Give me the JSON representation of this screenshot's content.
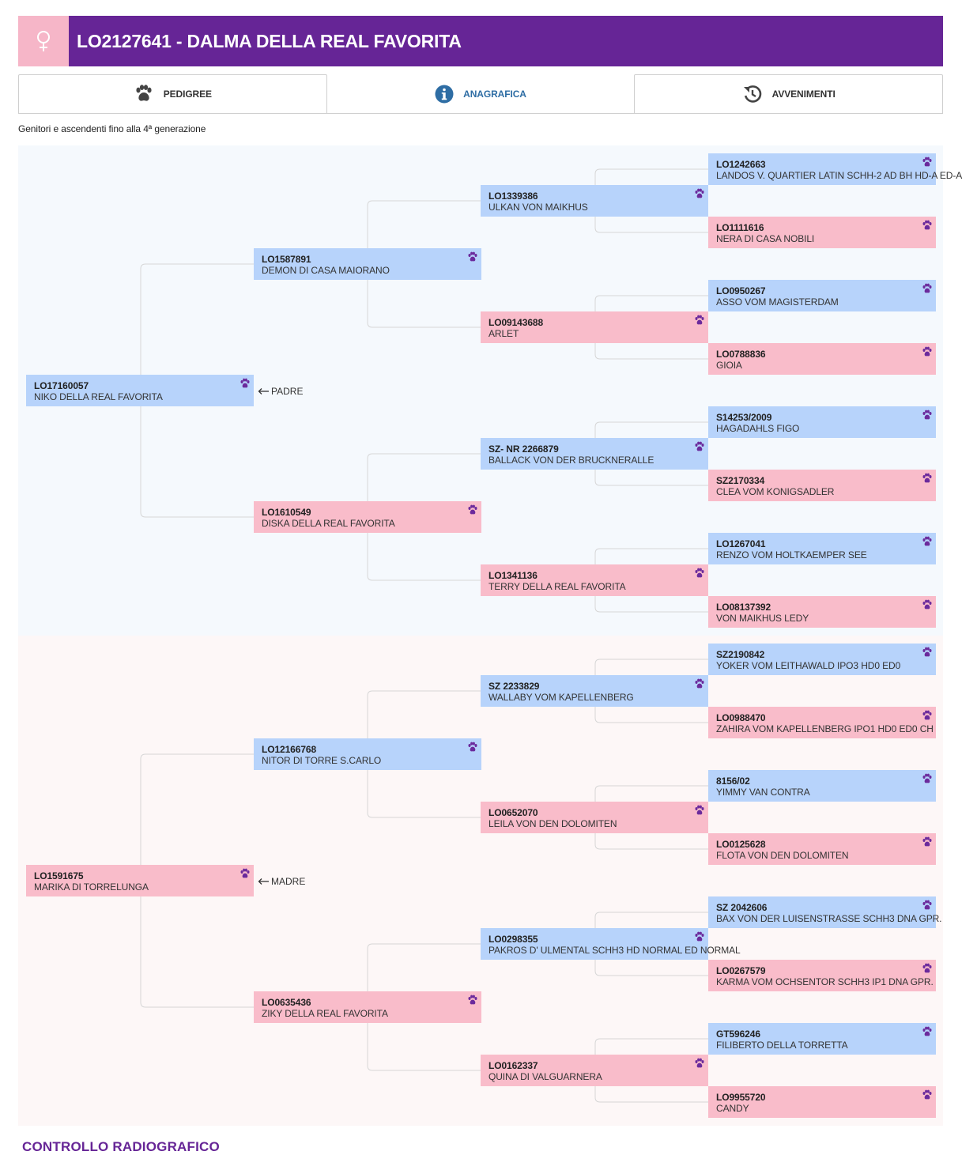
{
  "header": {
    "title": "LO2127641 - DALMA DELLA REAL FAVORITA",
    "sex_icon": "female-symbol-icon",
    "colors": {
      "bar": "#662596",
      "sex_box": "#f6b6c8"
    }
  },
  "tabs": [
    {
      "label": "PEDIGREE",
      "icon": "paw-icon"
    },
    {
      "label": "ANAGRAFICA",
      "icon": "info-circle-icon"
    },
    {
      "label": "AVVENIMENTI",
      "icon": "history-icon"
    }
  ],
  "subtitle": "Genitori e ascendenti fino alla 4ª generazione",
  "roles": {
    "sire": "PADRE",
    "dam": "MADRE"
  },
  "colors": {
    "male": "#b7d3fb",
    "female": "#f9bcca",
    "paw": "#6b2a9c"
  },
  "pedigree": {
    "sire": {
      "reg": "LO17160057",
      "name": "NIKO DELLA REAL FAVORITA",
      "sex": "m"
    },
    "ss": {
      "reg": "LO1587891",
      "name": "DEMON DI CASA MAIORANO",
      "sex": "m"
    },
    "sd": {
      "reg": "LO1610549",
      "name": "DISKA DELLA REAL FAVORITA",
      "sex": "f"
    },
    "sss": {
      "reg": "LO1339386",
      "name": "ULKAN VON MAIKHUS",
      "sex": "m"
    },
    "ssd": {
      "reg": "LO09143688",
      "name": "ARLET",
      "sex": "f"
    },
    "sds": {
      "reg": "SZ- NR 2266879",
      "name": "BALLACK VON DER BRUCKNERALLE",
      "sex": "m"
    },
    "sdd": {
      "reg": "LO1341136",
      "name": "TERRY DELLA REAL FAVORITA",
      "sex": "f"
    },
    "ssss": {
      "reg": "LO1242663",
      "name": "LANDOS V. QUARTIER LATIN SCHH-2 AD BH HD-A ED-A",
      "sex": "m"
    },
    "sssd": {
      "reg": "LO1111616",
      "name": "NERA DI CASA NOBILI",
      "sex": "f"
    },
    "ssds": {
      "reg": "LO0950267",
      "name": "ASSO VOM MAGISTERDAM",
      "sex": "m"
    },
    "ssdd": {
      "reg": "LO0788836",
      "name": "GIOIA",
      "sex": "f"
    },
    "sdss": {
      "reg": "S14253/2009",
      "name": "HAGADAHLS FIGO",
      "sex": "m"
    },
    "sdsd": {
      "reg": "SZ2170334",
      "name": "CLEA VOM KONIGSADLER",
      "sex": "f"
    },
    "sdds": {
      "reg": "LO1267041",
      "name": "RENZO VOM HOLTKAEMPER SEE",
      "sex": "m"
    },
    "sddd": {
      "reg": "LO08137392",
      "name": "VON MAIKHUS LEDY",
      "sex": "f"
    },
    "dam": {
      "reg": "LO1591675",
      "name": "MARIKA DI TORRELUNGA",
      "sex": "f"
    },
    "ds": {
      "reg": "LO12166768",
      "name": "NITOR DI TORRE S.CARLO",
      "sex": "m"
    },
    "dd": {
      "reg": "LO0635436",
      "name": "ZIKY DELLA REAL FAVORITA",
      "sex": "f"
    },
    "dss": {
      "reg": "SZ 2233829",
      "name": "WALLABY VOM KAPELLENBERG",
      "sex": "m"
    },
    "dsd": {
      "reg": "LO0652070",
      "name": "LEILA VON DEN DOLOMITEN",
      "sex": "f"
    },
    "dds": {
      "reg": "LO0298355",
      "name": "PAKROS D' ULMENTAL SCHH3 HD NORMAL ED NORMAL",
      "sex": "m"
    },
    "ddd": {
      "reg": "LO0162337",
      "name": "QUINA DI VALGUARNERA",
      "sex": "f"
    },
    "dsss": {
      "reg": "SZ2190842",
      "name": "YOKER VOM LEITHAWALD IPO3 HD0 ED0",
      "sex": "m"
    },
    "dssd": {
      "reg": "LO0988470",
      "name": "ZAHIRA VOM KAPELLENBERG IPO1 HD0 ED0 CH",
      "sex": "f"
    },
    "dsds": {
      "reg": "8156/02",
      "name": "YIMMY VAN CONTRA",
      "sex": "m"
    },
    "dsdd": {
      "reg": "LO0125628",
      "name": "FLOTA VON DEN DOLOMITEN",
      "sex": "f"
    },
    "ddss": {
      "reg": "SZ 2042606",
      "name": "BAX VON DER LUISENSTRASSE SCHH3 DNA GPR.",
      "sex": "m"
    },
    "ddsd": {
      "reg": "LO0267579",
      "name": "KARMA VOM OCHSENTOR SCHH3 IP1 DNA GPR.",
      "sex": "f"
    },
    "ddds": {
      "reg": "GT596246",
      "name": "FILIBERTO DELLA TORRETTA",
      "sex": "m"
    },
    "dddd": {
      "reg": "LO9955720",
      "name": "CANDY",
      "sex": "f"
    }
  },
  "footer": {
    "heading": "CONTROLLO RADIOGRAFICO"
  }
}
